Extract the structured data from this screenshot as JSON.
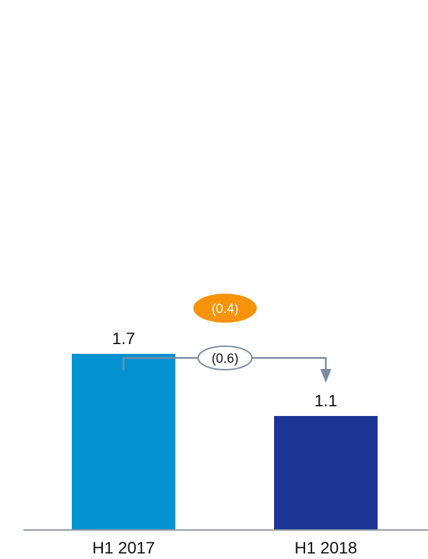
{
  "chart_data": {
    "type": "bar",
    "categories": [
      "H1 2017",
      "H1 2018"
    ],
    "values": [
      1.7,
      1.1
    ],
    "value_labels": [
      "1.7",
      "1.1"
    ],
    "bar_colors": [
      "#0492d0",
      "#1c3595"
    ],
    "ylim": [
      0,
      2.0
    ],
    "title": "",
    "xlabel": "",
    "ylabel": "",
    "grid": false,
    "legend": "none",
    "annotations": {
      "change": {
        "text": "(0.6)",
        "value": -0.6,
        "from": "H1 2017",
        "to": "H1 2018",
        "color": "#7a8aa0"
      },
      "highlight": {
        "text": "(0.4)",
        "value": -0.4,
        "fill": "#f7930a",
        "text_color": "#ffffff"
      }
    },
    "axis_color": "#8d9aa8"
  }
}
